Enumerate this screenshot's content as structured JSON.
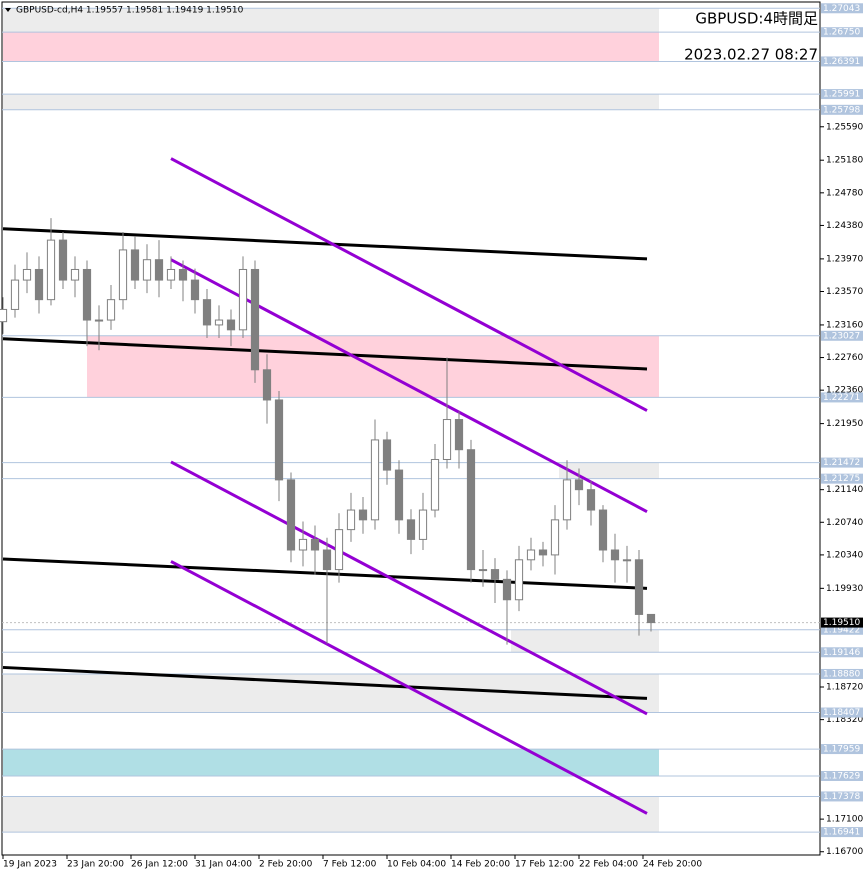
{
  "chart_data": {
    "type": "candlestick",
    "title": "GBPUSD:4時間足",
    "subtitle": "2023.02.27 08:27",
    "symbol_info": "GBPUSD-cd,H4  1.19557 1.19581 1.19419 1.19510",
    "xlim": [
      -0.25,
      204.25
    ],
    "ylim": [
      1.1666,
      1.2712
    ],
    "xticks": [
      {
        "value": 0,
        "label": "19 Jan 2023"
      },
      {
        "value": 16,
        "label": "23 Jan 20:00"
      },
      {
        "value": 32,
        "label": "26 Jan 12:00"
      },
      {
        "value": 48,
        "label": "31 Jan 04:00"
      },
      {
        "value": 64,
        "label": "2 Feb 20:00"
      },
      {
        "value": 80,
        "label": "7 Feb 12:00"
      },
      {
        "value": 96,
        "label": "10 Feb 04:00"
      },
      {
        "value": 112,
        "label": "14 Feb 20:00"
      },
      {
        "value": 128,
        "label": "17 Feb 12:00"
      },
      {
        "value": 144,
        "label": "22 Feb 04:00"
      },
      {
        "value": 160,
        "label": "24 Feb 20:00"
      }
    ],
    "yticks": [
      {
        "value": 1.2559,
        "label": "1.25590"
      },
      {
        "value": 1.2518,
        "label": "1.25180"
      },
      {
        "value": 1.2478,
        "label": "1.24780"
      },
      {
        "value": 1.2438,
        "label": "1.24380"
      },
      {
        "value": 1.2397,
        "label": "1.23970"
      },
      {
        "value": 1.2357,
        "label": "1.23570"
      },
      {
        "value": 1.2316,
        "label": "1.23160"
      },
      {
        "value": 1.2276,
        "label": "1.22760"
      },
      {
        "value": 1.2236,
        "label": "1.22360"
      },
      {
        "value": 1.2195,
        "label": "1.21950"
      },
      {
        "value": 1.2114,
        "label": "1.21140"
      },
      {
        "value": 1.2074,
        "label": "1.20740"
      },
      {
        "value": 1.2034,
        "label": "1.20340"
      },
      {
        "value": 1.1993,
        "label": "1.19930"
      },
      {
        "value": 1.1872,
        "label": "1.18720"
      },
      {
        "value": 1.1832,
        "label": "1.18320"
      },
      {
        "value": 1.171,
        "label": "1.17100"
      },
      {
        "value": 1.167,
        "label": "1.16700"
      }
    ],
    "levels": [
      1.27043,
      {
        "value": 1.2675,
        "label": "1.26750"
      },
      1.26391,
      1.25991,
      1.25798,
      1.23027,
      1.22271,
      1.21472,
      1.21275,
      1.19422,
      1.19146,
      {
        "value": 1.1888,
        "label": "1.18880"
      },
      1.18407,
      1.17959,
      1.17629,
      1.17378,
      1.16941
    ],
    "current_price": {
      "value": 1.1951,
      "label": "1.19510"
    },
    "zones": [
      {
        "x_start": 0,
        "x_end": 164,
        "low": 1.2675,
        "high": 1.27043,
        "color": "#ececec"
      },
      {
        "x_start": 0,
        "x_end": 164,
        "low": 1.26391,
        "high": 1.2675,
        "color": "#ffd1dc"
      },
      {
        "x_start": 0,
        "x_end": 164,
        "low": 1.25798,
        "high": 1.25991,
        "color": "#ececec"
      },
      {
        "x_start": 21,
        "x_end": 164,
        "low": 1.22271,
        "high": 1.23027,
        "color": "#ffd1dc"
      },
      {
        "x_start": 139,
        "x_end": 164,
        "low": 1.21275,
        "high": 1.21472,
        "color": "#ececec"
      },
      {
        "x_start": 127,
        "x_end": 164,
        "low": 1.19146,
        "high": 1.19422,
        "color": "#ececec"
      },
      {
        "x_start": 0,
        "x_end": 164,
        "low": 1.18407,
        "high": 1.1888,
        "color": "#ececec"
      },
      {
        "x_start": 0,
        "x_end": 164,
        "low": 1.17629,
        "high": 1.17959,
        "color": "#b0dfe5"
      },
      {
        "x_start": 0,
        "x_end": 164,
        "low": 1.16941,
        "high": 1.17378,
        "color": "#ececec"
      }
    ],
    "trendlines": [
      {
        "x": [
          0,
          161
        ],
        "y": [
          1.2434,
          1.2397
        ],
        "color": "#000000"
      },
      {
        "x": [
          0,
          161
        ],
        "y": [
          1.2299,
          1.2262
        ],
        "color": "#000000"
      },
      {
        "x": [
          0,
          161
        ],
        "y": [
          1.2029,
          1.1993
        ],
        "color": "#000000"
      },
      {
        "x": [
          0,
          161
        ],
        "y": [
          1.1896,
          1.1858
        ],
        "color": "#000000"
      },
      {
        "x": [
          42,
          161
        ],
        "y": [
          1.252,
          1.2211
        ],
        "color": "#9400d3"
      },
      {
        "x": [
          42,
          161
        ],
        "y": [
          1.2396,
          1.2087
        ],
        "color": "#9400d3"
      },
      {
        "x": [
          42,
          161
        ],
        "y": [
          1.2148,
          1.1839
        ],
        "color": "#9400d3"
      },
      {
        "x": [
          42,
          161
        ],
        "y": [
          1.2026,
          1.1717
        ],
        "color": "#9400d3"
      }
    ],
    "x": [
      0,
      3,
      6,
      9,
      12,
      15,
      18,
      21,
      24,
      27,
      30,
      33,
      36,
      39,
      42,
      45,
      48,
      51,
      54,
      57,
      60,
      63,
      66,
      69,
      72,
      75,
      78,
      81,
      84,
      87,
      90,
      93,
      96,
      99,
      102,
      105,
      108,
      111,
      114,
      117,
      120,
      123,
      126,
      129,
      132,
      135,
      138,
      141,
      144,
      147,
      150,
      153,
      156,
      159,
      162
    ],
    "open": [
      1.232,
      1.2335,
      1.2371,
      1.2384,
      1.2347,
      1.242,
      1.2371,
      1.2384,
      1.2322,
      1.2322,
      1.2347,
      1.2408,
      1.2371,
      1.2396,
      1.2371,
      1.2384,
      1.2371,
      1.2347,
      1.2316,
      1.2322,
      1.231,
      1.2384,
      1.2261,
      1.2224,
      1.2126,
      1.204,
      1.2053,
      1.204,
      1.2016,
      1.2065,
      1.2089,
      1.2077,
      1.2175,
      1.2138,
      1.2077,
      1.2053,
      1.2089,
      1.2151,
      1.22,
      1.2163,
      1.2016,
      1.2016,
      1.2004,
      1.1979,
      1.2028,
      1.204,
      1.2034,
      1.2077,
      1.2126,
      1.2114,
      1.2089,
      1.204,
      1.2028,
      1.2028,
      1.1961
    ],
    "high": [
      1.235,
      1.239,
      1.2405,
      1.24,
      1.2447,
      1.243,
      1.24,
      1.2395,
      1.234,
      1.2365,
      1.243,
      1.2425,
      1.2415,
      1.242,
      1.24,
      1.2395,
      1.2385,
      1.236,
      1.234,
      1.2335,
      1.24,
      1.2395,
      1.228,
      1.2235,
      1.2135,
      1.2075,
      1.207,
      1.2055,
      1.2085,
      1.211,
      1.2105,
      1.22,
      1.2185,
      1.215,
      1.209,
      1.211,
      1.217,
      1.2276,
      1.221,
      1.2175,
      1.204,
      1.203,
      1.2015,
      1.2045,
      1.2055,
      1.205,
      1.2095,
      1.215,
      1.214,
      1.2125,
      1.2095,
      1.206,
      1.2045,
      1.204,
      1.196
    ],
    "low": [
      1.2305,
      1.2325,
      1.2355,
      1.233,
      1.234,
      1.236,
      1.235,
      1.229,
      1.2285,
      1.231,
      1.2335,
      1.236,
      1.2355,
      1.235,
      1.236,
      1.2345,
      1.233,
      1.23,
      1.23,
      1.229,
      1.23,
      1.2245,
      1.2195,
      1.21,
      1.2025,
      1.202,
      1.201,
      1.1925,
      1.2,
      1.205,
      1.206,
      1.2065,
      1.212,
      1.206,
      1.2035,
      1.204,
      1.208,
      1.214,
      1.214,
      1.2,
      1.1995,
      1.1975,
      1.1924,
      1.1965,
      1.2015,
      1.202,
      1.201,
      1.2065,
      1.2095,
      1.207,
      1.2025,
      1.2,
      1.2,
      1.1935,
      1.194
    ],
    "close": [
      1.2335,
      1.2371,
      1.2384,
      1.2347,
      1.242,
      1.2371,
      1.2384,
      1.2322,
      1.2322,
      1.2347,
      1.2408,
      1.2371,
      1.2396,
      1.2371,
      1.2384,
      1.2371,
      1.2347,
      1.2316,
      1.2322,
      1.231,
      1.2384,
      1.2261,
      1.2224,
      1.2126,
      1.204,
      1.2053,
      1.204,
      1.2016,
      1.2065,
      1.2089,
      1.2077,
      1.2175,
      1.2138,
      1.2077,
      1.2053,
      1.2089,
      1.2151,
      1.22,
      1.2163,
      1.2016,
      1.2016,
      1.2004,
      1.1979,
      1.2028,
      1.204,
      1.2034,
      1.2077,
      1.2126,
      1.2114,
      1.2089,
      1.204,
      1.2028,
      1.2028,
      1.1961,
      1.1951
    ],
    "up_color": "#ffffff",
    "down_color": "#808080",
    "wick_color": "#808080"
  }
}
